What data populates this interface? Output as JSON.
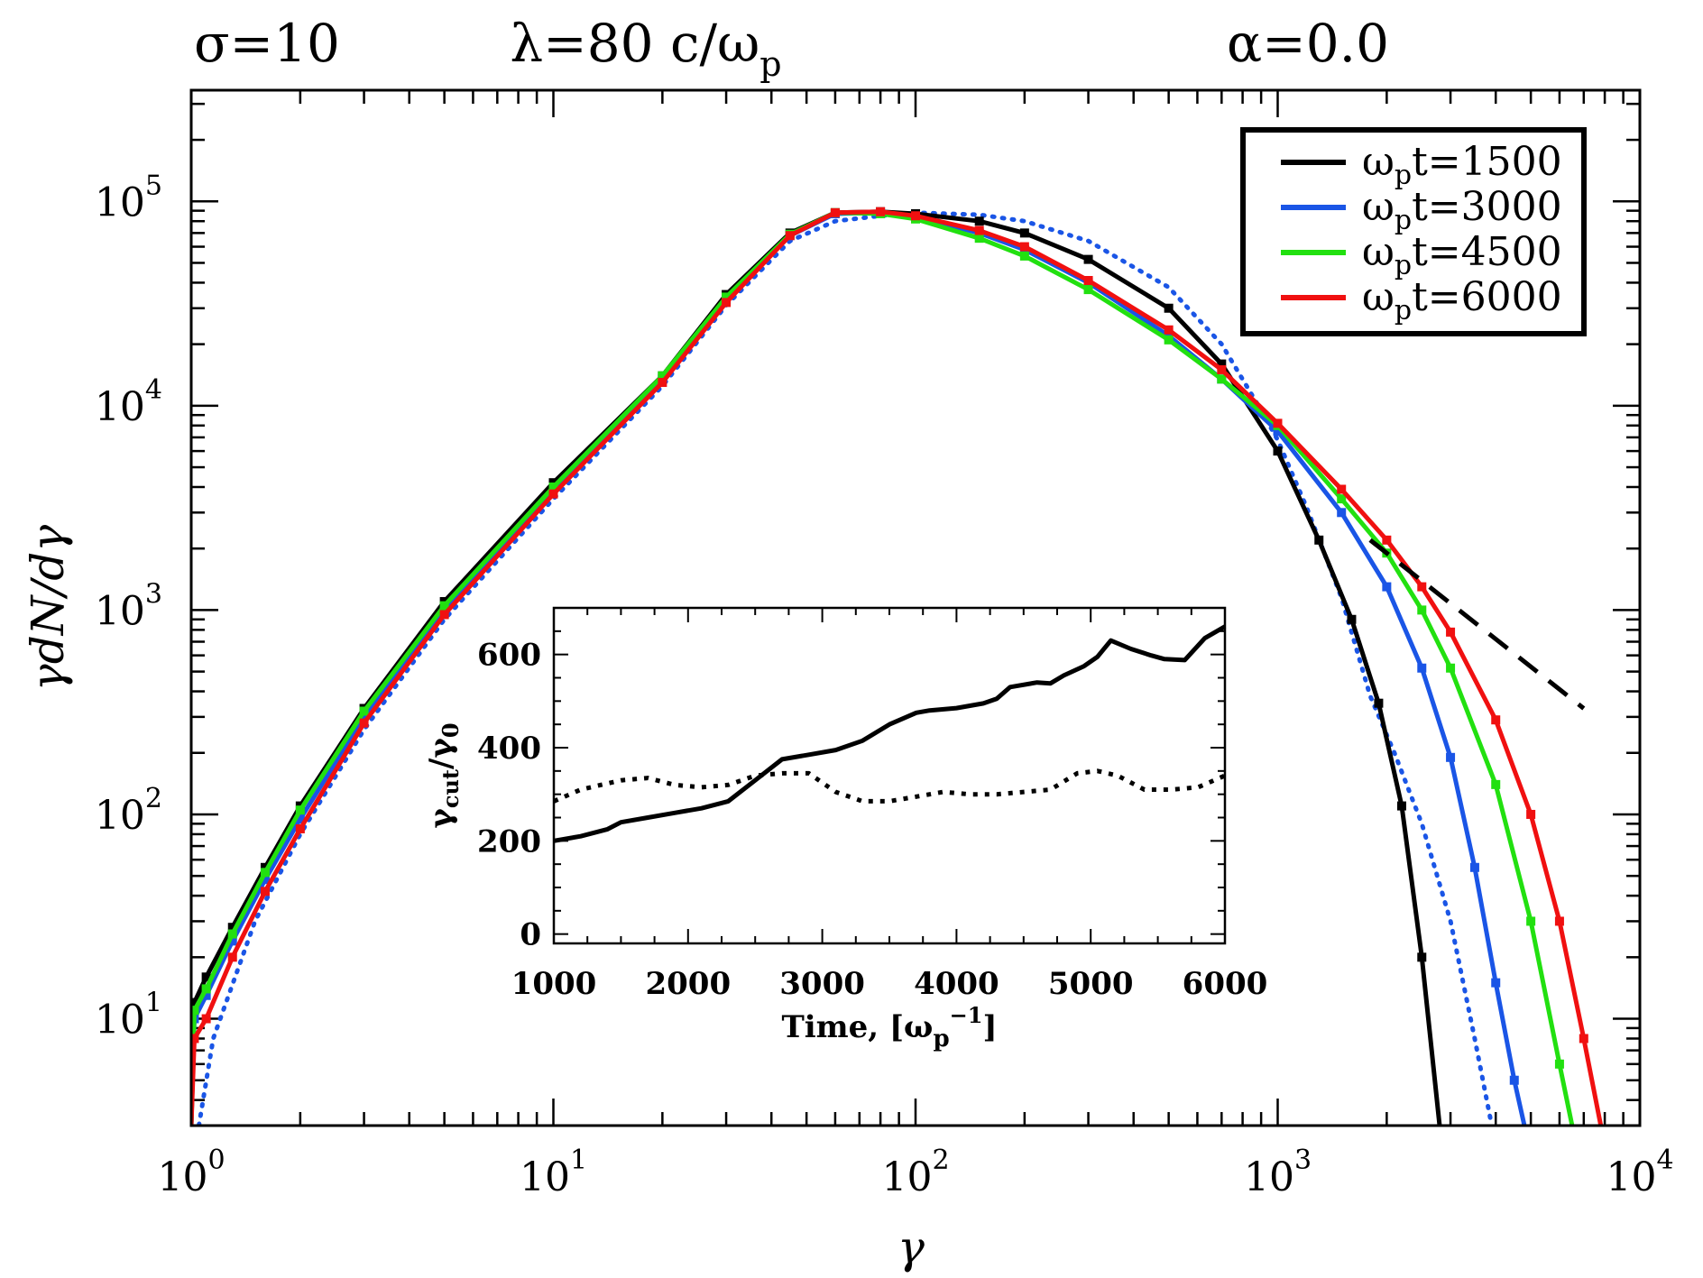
{
  "chart_data": {
    "type": "line",
    "title_parts": [
      "σ=10",
      "λ=80  c/ω",
      "p",
      "α=0.0"
    ],
    "xlabel": "γ",
    "ylabel": "γdN/dγ",
    "xscale": "log",
    "yscale": "log",
    "xlim": [
      1,
      10000
    ],
    "ylim": [
      3,
      350000
    ],
    "x_ticks": [
      {
        "value": 1,
        "base": "10",
        "exp": "0"
      },
      {
        "value": 10,
        "base": "10",
        "exp": "1"
      },
      {
        "value": 100,
        "base": "10",
        "exp": "2"
      },
      {
        "value": 1000,
        "base": "10",
        "exp": "3"
      },
      {
        "value": 10000,
        "base": "10",
        "exp": "4"
      }
    ],
    "y_ticks": [
      {
        "value": 10,
        "base": "10",
        "exp": "1"
      },
      {
        "value": 100,
        "base": "10",
        "exp": "2"
      },
      {
        "value": 1000,
        "base": "10",
        "exp": "3"
      },
      {
        "value": 10000,
        "base": "10",
        "exp": "4"
      },
      {
        "value": 100000,
        "base": "10",
        "exp": "5"
      }
    ],
    "series": [
      {
        "name": "ωpt=1500",
        "legend_main": "ω",
        "legend_sub": "p",
        "legend_rest": "t=1500",
        "color": "#000000",
        "points": [
          [
            1.0,
            3
          ],
          [
            1.02,
            12
          ],
          [
            1.1,
            16
          ],
          [
            1.3,
            28
          ],
          [
            1.6,
            55
          ],
          [
            2,
            110
          ],
          [
            3,
            330
          ],
          [
            5,
            1100
          ],
          [
            10,
            4200
          ],
          [
            20,
            14000
          ],
          [
            30,
            35000
          ],
          [
            45,
            70000
          ],
          [
            60,
            88000
          ],
          [
            80,
            89000
          ],
          [
            100,
            87000
          ],
          [
            150,
            80000
          ],
          [
            200,
            70000
          ],
          [
            300,
            52000
          ],
          [
            500,
            30000
          ],
          [
            700,
            16000
          ],
          [
            1000,
            6000
          ],
          [
            1300,
            2200
          ],
          [
            1600,
            900
          ],
          [
            1900,
            350
          ],
          [
            2200,
            110
          ],
          [
            2500,
            20
          ],
          [
            2800,
            3
          ]
        ]
      },
      {
        "name": "ωpt=3000",
        "legend_main": "ω",
        "legend_sub": "p",
        "legend_rest": "t=3000",
        "color": "#1a55e6",
        "points": [
          [
            1.0,
            3
          ],
          [
            1.02,
            10
          ],
          [
            1.1,
            13
          ],
          [
            1.3,
            24
          ],
          [
            1.6,
            48
          ],
          [
            2,
            95
          ],
          [
            3,
            300
          ],
          [
            5,
            1000
          ],
          [
            10,
            3900
          ],
          [
            20,
            13500
          ],
          [
            30,
            33000
          ],
          [
            45,
            68000
          ],
          [
            60,
            87000
          ],
          [
            80,
            88000
          ],
          [
            100,
            84000
          ],
          [
            150,
            70000
          ],
          [
            200,
            58000
          ],
          [
            300,
            40000
          ],
          [
            500,
            22000
          ],
          [
            700,
            13500
          ],
          [
            1000,
            7500
          ],
          [
            1500,
            3000
          ],
          [
            2000,
            1300
          ],
          [
            2500,
            520
          ],
          [
            3000,
            190
          ],
          [
            3500,
            55
          ],
          [
            4000,
            15
          ],
          [
            4500,
            5
          ],
          [
            4800,
            3
          ]
        ]
      },
      {
        "name": "ωpt=4500",
        "legend_main": "ω",
        "legend_sub": "p",
        "legend_rest": "t=4500",
        "color": "#22e010",
        "points": [
          [
            1.0,
            3
          ],
          [
            1.02,
            11
          ],
          [
            1.1,
            14
          ],
          [
            1.3,
            26
          ],
          [
            1.6,
            52
          ],
          [
            2,
            105
          ],
          [
            3,
            320
          ],
          [
            5,
            1050
          ],
          [
            10,
            4000
          ],
          [
            20,
            14000
          ],
          [
            30,
            34000
          ],
          [
            45,
            69000
          ],
          [
            60,
            88000
          ],
          [
            80,
            87000
          ],
          [
            100,
            82000
          ],
          [
            150,
            66000
          ],
          [
            200,
            54000
          ],
          [
            300,
            37000
          ],
          [
            500,
            21000
          ],
          [
            700,
            13500
          ],
          [
            1000,
            8000
          ],
          [
            1500,
            3500
          ],
          [
            2000,
            1900
          ],
          [
            2500,
            1000
          ],
          [
            3000,
            520
          ],
          [
            4000,
            140
          ],
          [
            5000,
            30
          ],
          [
            6000,
            6
          ],
          [
            6500,
            3
          ]
        ]
      },
      {
        "name": "ωpt=6000",
        "legend_main": "ω",
        "legend_sub": "p",
        "legend_rest": "t=6000",
        "color": "#f01010",
        "points": [
          [
            1.0,
            3
          ],
          [
            1.02,
            8
          ],
          [
            1.1,
            10
          ],
          [
            1.3,
            20
          ],
          [
            1.6,
            42
          ],
          [
            2,
            85
          ],
          [
            3,
            280
          ],
          [
            5,
            950
          ],
          [
            10,
            3700
          ],
          [
            20,
            13000
          ],
          [
            30,
            32000
          ],
          [
            45,
            68000
          ],
          [
            60,
            88000
          ],
          [
            80,
            89000
          ],
          [
            100,
            85000
          ],
          [
            150,
            72000
          ],
          [
            200,
            60000
          ],
          [
            300,
            41000
          ],
          [
            500,
            23500
          ],
          [
            700,
            15000
          ],
          [
            1000,
            8200
          ],
          [
            1500,
            3900
          ],
          [
            2000,
            2200
          ],
          [
            2500,
            1300
          ],
          [
            3000,
            780
          ],
          [
            4000,
            290
          ],
          [
            5000,
            100
          ],
          [
            6000,
            30
          ],
          [
            7000,
            8
          ],
          [
            7800,
            3
          ]
        ]
      },
      {
        "name": "reference-dotted",
        "color": "#1a55e6",
        "style": "dotted",
        "points": [
          [
            1.05,
            3
          ],
          [
            1.15,
            8
          ],
          [
            1.5,
            30
          ],
          [
            2,
            80
          ],
          [
            3,
            260
          ],
          [
            5,
            900
          ],
          [
            10,
            3500
          ],
          [
            20,
            12500
          ],
          [
            30,
            31000
          ],
          [
            45,
            64000
          ],
          [
            60,
            80000
          ],
          [
            80,
            85000
          ],
          [
            100,
            88000
          ],
          [
            150,
            86000
          ],
          [
            200,
            80000
          ],
          [
            300,
            64000
          ],
          [
            500,
            38000
          ],
          [
            700,
            20000
          ],
          [
            900,
            9500
          ],
          [
            1000,
            6800
          ],
          [
            1200,
            3200
          ],
          [
            1500,
            1150
          ],
          [
            1800,
            380
          ],
          [
            2100,
            200
          ],
          [
            2500,
            90
          ],
          [
            3000,
            30
          ],
          [
            3500,
            8
          ],
          [
            3900,
            3
          ]
        ]
      },
      {
        "name": "power-law-guide",
        "color": "#000000",
        "style": "dashed",
        "points": [
          [
            1800,
            2200
          ],
          [
            7000,
            330
          ]
        ]
      }
    ],
    "legend": {
      "position": "top-right"
    },
    "inset": {
      "type": "line",
      "xlabel_main": "Time, [ω",
      "xlabel_sub": "p",
      "xlabel_sup": "−1",
      "xlabel_end": "]",
      "ylabel_main": "γ",
      "ylabel_sub1": "cut",
      "ylabel_mid": "/γ",
      "ylabel_sub2": "0",
      "xlim": [
        1000,
        6000
      ],
      "ylim": [
        -20,
        700
      ],
      "x_ticks": [
        1000,
        2000,
        3000,
        4000,
        5000,
        6000
      ],
      "y_ticks": [
        0,
        200,
        400,
        600
      ],
      "series": [
        {
          "name": "gamma-cut-solid",
          "style": "solid",
          "color": "#000000",
          "points": [
            [
              1000,
              200
            ],
            [
              1200,
              210
            ],
            [
              1400,
              225
            ],
            [
              1500,
              240
            ],
            [
              1700,
              250
            ],
            [
              1900,
              260
            ],
            [
              2100,
              270
            ],
            [
              2300,
              285
            ],
            [
              2500,
              330
            ],
            [
              2700,
              375
            ],
            [
              2900,
              385
            ],
            [
              3100,
              395
            ],
            [
              3300,
              415
            ],
            [
              3500,
              450
            ],
            [
              3700,
              475
            ],
            [
              3800,
              480
            ],
            [
              4000,
              485
            ],
            [
              4200,
              495
            ],
            [
              4300,
              505
            ],
            [
              4400,
              530
            ],
            [
              4600,
              540
            ],
            [
              4700,
              538
            ],
            [
              4800,
              555
            ],
            [
              4950,
              575
            ],
            [
              5050,
              595
            ],
            [
              5150,
              630
            ],
            [
              5300,
              612
            ],
            [
              5450,
              598
            ],
            [
              5550,
              590
            ],
            [
              5700,
              588
            ],
            [
              5850,
              635
            ],
            [
              6000,
              660
            ]
          ]
        },
        {
          "name": "gamma-cut-dotted",
          "style": "dotted",
          "color": "#000000",
          "points": [
            [
              1000,
              285
            ],
            [
              1200,
              310
            ],
            [
              1500,
              330
            ],
            [
              1700,
              335
            ],
            [
              1900,
              320
            ],
            [
              2100,
              315
            ],
            [
              2300,
              320
            ],
            [
              2500,
              340
            ],
            [
              2700,
              345
            ],
            [
              2900,
              345
            ],
            [
              3100,
              305
            ],
            [
              3300,
              285
            ],
            [
              3500,
              285
            ],
            [
              3700,
              295
            ],
            [
              3900,
              305
            ],
            [
              4100,
              300
            ],
            [
              4300,
              300
            ],
            [
              4500,
              305
            ],
            [
              4700,
              310
            ],
            [
              4900,
              345
            ],
            [
              5050,
              350
            ],
            [
              5200,
              340
            ],
            [
              5400,
              310
            ],
            [
              5600,
              310
            ],
            [
              5800,
              315
            ],
            [
              6000,
              340
            ]
          ]
        }
      ]
    }
  }
}
